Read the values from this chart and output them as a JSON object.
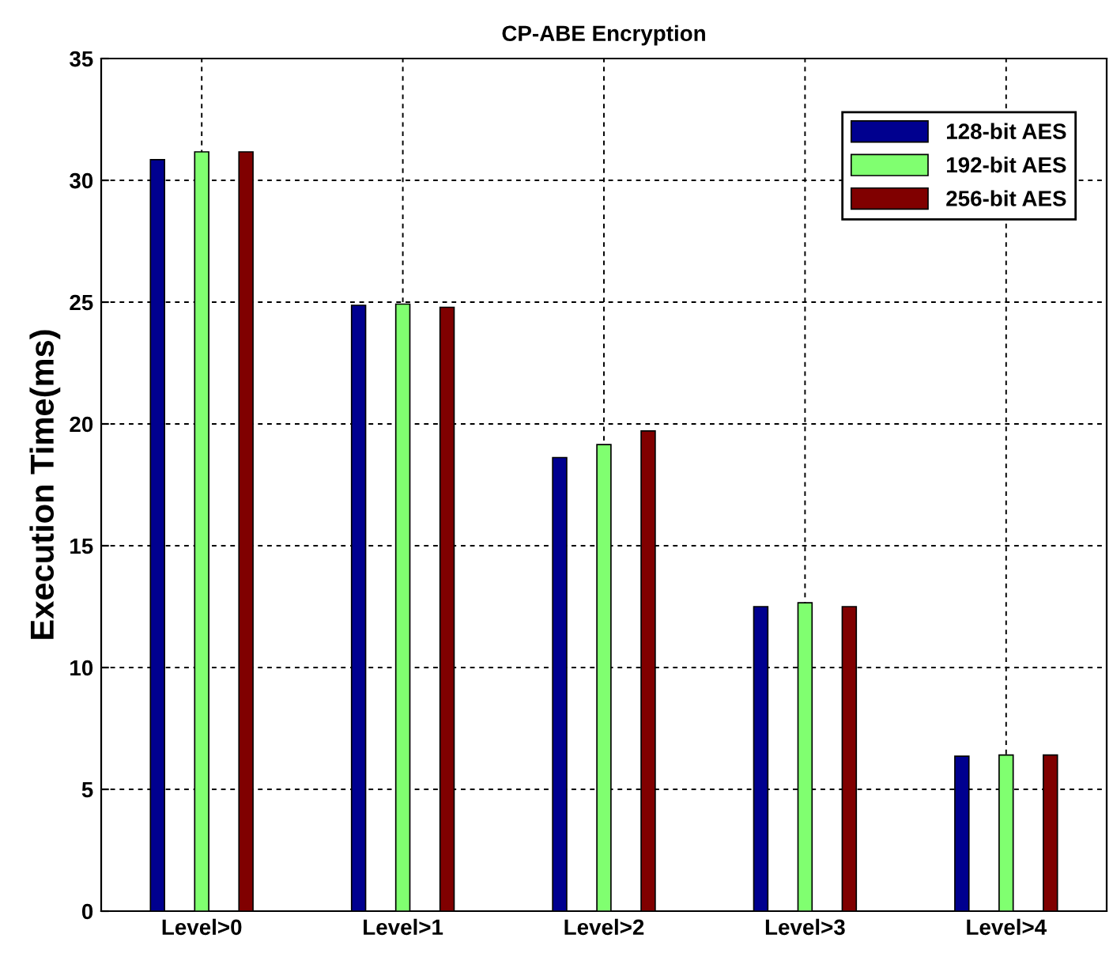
{
  "chart_data": {
    "type": "bar",
    "title": "CP-ABE Encryption",
    "ylabel": "Execution Time(ms)",
    "categories": [
      "Level>0",
      "Level>1",
      "Level>2",
      "Level>3",
      "Level>4"
    ],
    "series": [
      {
        "name": "128-bit AES",
        "color": "#00008f",
        "values": [
          30.85,
          24.87,
          18.62,
          12.5,
          6.36
        ]
      },
      {
        "name": "192-bit AES",
        "color": "#80ff70",
        "values": [
          31.17,
          24.92,
          19.15,
          12.66,
          6.41
        ]
      },
      {
        "name": "256-bit AES",
        "color": "#800000",
        "values": [
          31.17,
          24.79,
          19.71,
          12.5,
          6.41
        ]
      }
    ],
    "ylim": [
      0,
      35
    ],
    "yticks": [
      0,
      5,
      10,
      15,
      20,
      25,
      30,
      35
    ],
    "grid": true,
    "legend": "top right"
  }
}
